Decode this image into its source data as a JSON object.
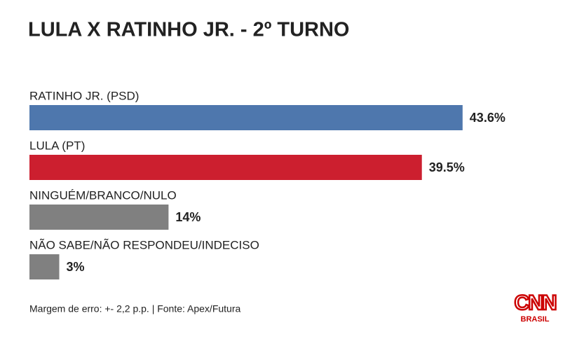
{
  "chart_data": {
    "type": "bar",
    "orientation": "horizontal",
    "title": "LULA X RATINHO JR. - 2º TURNO",
    "categories": [
      "RATINHO JR. (PSD)",
      "LULA (PT)",
      "NINGUÉM/BRANCO/NULO",
      "NÃO SABE/NÃO RESPONDEU/INDECISO"
    ],
    "values": [
      43.6,
      39.5,
      14,
      3
    ],
    "value_labels": [
      "43.6%",
      "39.5%",
      "14%",
      "3%"
    ],
    "colors": [
      "#4e77ad",
      "#cc1f2f",
      "#808080",
      "#808080"
    ],
    "footnote": "Margem de erro: +- 2,2 p.p. | Fonte: Apex/Futura",
    "logo": {
      "name": "CNN",
      "subtitle": "BRASIL"
    }
  }
}
